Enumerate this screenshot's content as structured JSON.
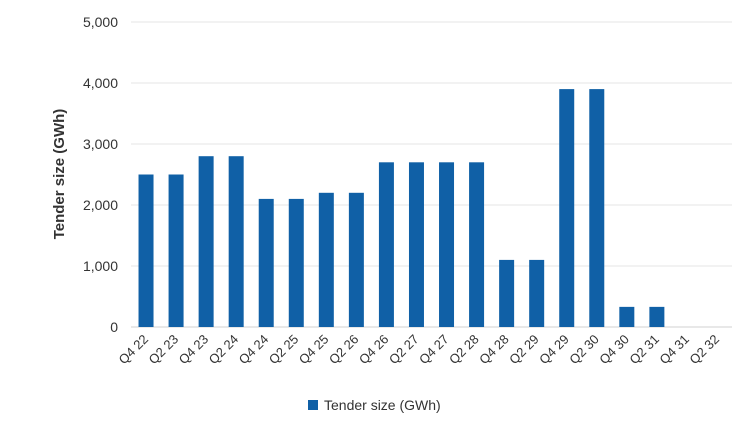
{
  "chart_data": {
    "type": "bar",
    "title": "",
    "xlabel": "",
    "ylabel": "Tender size (GWh)",
    "ylim": [
      0,
      5000
    ],
    "yticks": [
      0,
      1000,
      2000,
      3000,
      4000,
      5000
    ],
    "ytick_labels": [
      "0",
      "1,000",
      "2,000",
      "3,000",
      "4,000",
      "5,000"
    ],
    "grid": "horizontal",
    "legend_position": "bottom",
    "categories": [
      "Q4 22",
      "Q2 23",
      "Q4 23",
      "Q2 24",
      "Q4 24",
      "Q2 25",
      "Q4 25",
      "Q2 26",
      "Q4 26",
      "Q2 27",
      "Q4 27",
      "Q2 28",
      "Q4 28",
      "Q2 29",
      "Q4 29",
      "Q2 30",
      "Q4 30",
      "Q2 31",
      "Q4 31",
      "Q2 32"
    ],
    "series": [
      {
        "name": "Tender size (GWh)",
        "color": "#1060a6",
        "values": [
          2500,
          2500,
          2800,
          2800,
          2100,
          2100,
          2200,
          2200,
          2700,
          2700,
          2700,
          2700,
          1100,
          1100,
          3900,
          3900,
          330,
          330,
          0,
          0
        ]
      }
    ]
  }
}
